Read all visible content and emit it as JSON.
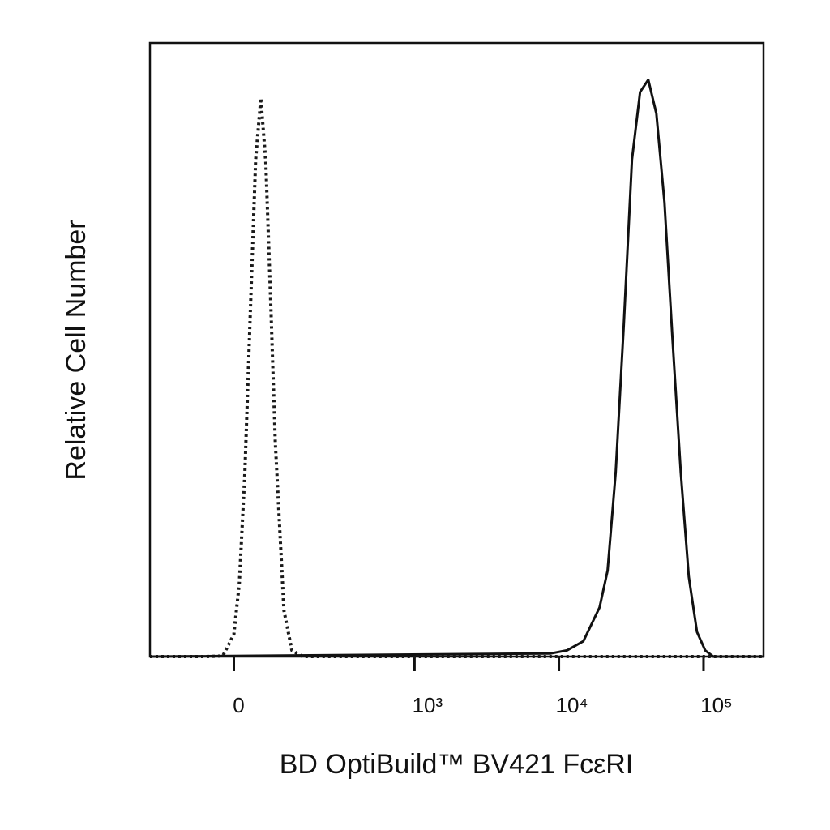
{
  "chart_data": {
    "type": "line",
    "x_label": "BD OptiBuild™ BV421 FcεRI",
    "y_label": "Relative Cell Number",
    "xscale": "biexponential",
    "xlim": [
      -200,
      260000
    ],
    "ylim": [
      0,
      100
    ],
    "xticks": [
      0,
      {
        "value": 1000,
        "label": "10³"
      },
      {
        "value": 10000,
        "label": "10⁴"
      },
      {
        "value": 100000,
        "label": "10⁵"
      }
    ],
    "series": [
      {
        "color": "#1a1a1a",
        "style": "dotted",
        "x": [
          -200,
          -50,
          -20,
          0,
          10,
          20,
          30,
          40,
          50,
          60,
          70,
          80,
          100,
          120,
          150,
          200,
          260000
        ],
        "values": [
          0,
          0,
          0.1,
          3.6,
          12,
          30,
          56,
          81,
          91,
          80.6,
          58,
          35,
          7.5,
          1,
          0,
          0,
          0
        ]
      },
      {
        "color": "#111111",
        "style": "solid",
        "x": [
          -200,
          8770,
          11370,
          14760,
          19100,
          21700,
          24700,
          28100,
          32000,
          36400,
          41500,
          47200,
          53700,
          61100,
          69600,
          79100,
          90100,
          102600,
          116700,
          260000
        ],
        "values": [
          0,
          0.5,
          1,
          2.5,
          8,
          14,
          30,
          54,
          81,
          92,
          94,
          88.5,
          74,
          51.5,
          30,
          13,
          4,
          1,
          0,
          0
        ]
      }
    ]
  }
}
